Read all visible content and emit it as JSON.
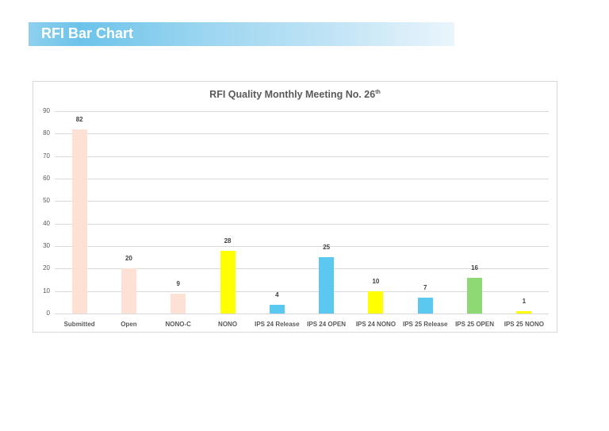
{
  "banner": {
    "title": "RFI Bar Chart"
  },
  "chart_data": {
    "type": "bar",
    "title": "RFI Quality Monthly Meeting No. 26th",
    "title_main": "RFI Quality Monthly Meeting No. 26",
    "title_sup": "th",
    "categories": [
      "Submitted",
      "Open",
      "NONO-C",
      "NONO",
      "IPS 24 Release",
      "IPS 24 OPEN",
      "IPS 24 NONO",
      "IPS 25 Release",
      "IPS 25 OPEN",
      "IPS 25 NONO"
    ],
    "values": [
      82,
      20,
      9,
      28,
      4,
      25,
      10,
      7,
      16,
      1
    ],
    "colors": [
      "#FCE1D4",
      "#FCE1D4",
      "#FCE1D4",
      "#FFFF00",
      "#5BC8F0",
      "#5BC8F0",
      "#FFFF00",
      "#5BC8F0",
      "#8ED973",
      "#FFFF00"
    ],
    "xlabel": "",
    "ylabel": "",
    "ylim": [
      0,
      90
    ],
    "yticks": [
      0,
      10,
      20,
      30,
      40,
      50,
      60,
      70,
      80,
      90
    ],
    "grid": true,
    "legend": null,
    "data_labels": true
  }
}
